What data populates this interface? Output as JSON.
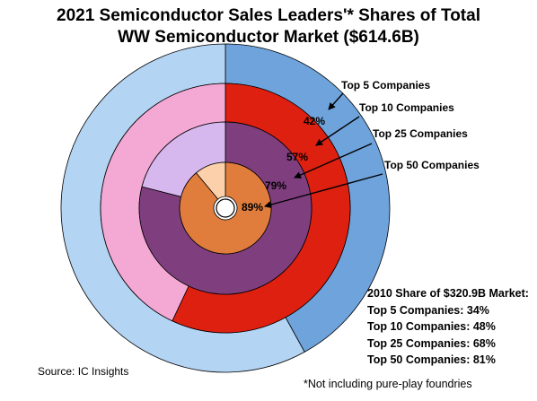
{
  "chart_data": {
    "type": "pie",
    "subtype": "nested-donut",
    "title_line1": "2021 Semiconductor Sales Leaders'* Shares of Total",
    "title_line2": "WW Semiconductor Market ($614.6B)",
    "rings": [
      {
        "name": "Top 5 Companies",
        "value": 42,
        "value_label": "42%",
        "color": "#6fa3dc",
        "rest_color": "#b4d4f4"
      },
      {
        "name": "Top 10 Companies",
        "value": 57,
        "value_label": "57%",
        "color": "#dd2010",
        "rest_color": "#f4a8d4"
      },
      {
        "name": "Top 25 Companies",
        "value": 79,
        "value_label": "79%",
        "color": "#7f3f7f",
        "rest_color": "#d6b8ee"
      },
      {
        "name": "Top 50 Companies",
        "value": 89,
        "value_label": "89%",
        "color": "#e07c3c",
        "rest_color": "#fbd0aa"
      }
    ],
    "note": {
      "heading": "2010 Share of $320.9B Market:",
      "lines": [
        "Top 5 Companies: 34%",
        "Top 10 Companies: 48%",
        "Top 25 Companies: 68%",
        "Top 50 Companies: 81%"
      ]
    },
    "source": "Source: IC Insights",
    "footnote": "*Not including pure-play foundries"
  }
}
